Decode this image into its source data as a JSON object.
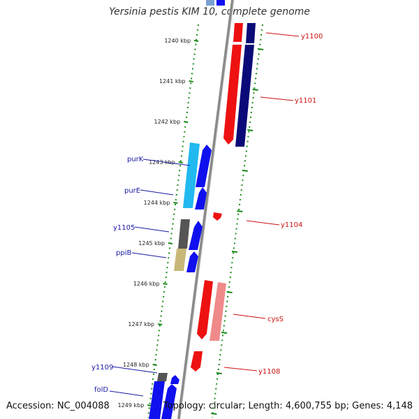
{
  "title": "Yersinia pestis KIM 10, complete genome",
  "footer": {
    "accession": "Accession: NC_004088",
    "summary": "Topology: circular; Length: 4,600,755 bp; Genes: 4,148"
  },
  "scale_ticks": [
    "1240 kbp",
    "1241 kbp",
    "1242 kbp",
    "1243 kbp",
    "1244 kbp",
    "1245 kbp",
    "1246 kbp",
    "1247 kbp",
    "1248 kbp",
    "1249 kbp"
  ],
  "left_gene_labels": [
    "purK",
    "purE",
    "y1105",
    "ppiB",
    "y1109",
    "folD"
  ],
  "right_gene_labels": [
    "y1100",
    "y1101",
    "y1104",
    "cysS",
    "y1108"
  ],
  "colors": {
    "backbone": "#8a8a8a",
    "forward_cds": "#1010ee",
    "reverse_cds": "#ee1111",
    "reverse_dark": "#0a0a78",
    "cys_pink": "#f08a8a",
    "purK_cyan": "#22b8f0",
    "gray_feature": "#555555",
    "ppiB_tan": "#c8b878",
    "left_label": "#1a1aa6",
    "right_label": "#cc1111",
    "tick_green": "#1a8a1a"
  }
}
